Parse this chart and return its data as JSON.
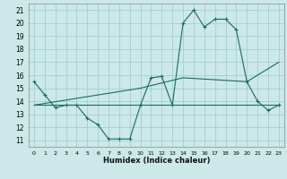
{
  "xlabel": "Humidex (Indice chaleur)",
  "bg_color": "#cce8e8",
  "grid_color": "#99cccc",
  "line_color": "#1a6b5a",
  "xlim": [
    -0.5,
    23.5
  ],
  "ylim": [
    10.5,
    21.5
  ],
  "yticks": [
    11,
    12,
    13,
    14,
    15,
    16,
    17,
    18,
    19,
    20,
    21
  ],
  "xticks": [
    0,
    1,
    2,
    3,
    4,
    5,
    6,
    7,
    8,
    9,
    10,
    11,
    12,
    13,
    14,
    15,
    16,
    17,
    18,
    19,
    20,
    21,
    22,
    23
  ],
  "line1_x": [
    0,
    1,
    2,
    3,
    4,
    5,
    6,
    7,
    8,
    9,
    10,
    11,
    12,
    13,
    14,
    15,
    16,
    17,
    18,
    19,
    20,
    21,
    22,
    23
  ],
  "line1_y": [
    15.5,
    14.5,
    13.5,
    13.7,
    13.7,
    12.7,
    12.2,
    11.1,
    11.1,
    11.1,
    13.7,
    15.8,
    15.9,
    13.7,
    20.0,
    21.0,
    19.7,
    20.3,
    20.3,
    19.5,
    15.5,
    14.0,
    13.3,
    13.7
  ],
  "line2_x": [
    0,
    23
  ],
  "line2_y": [
    13.7,
    13.7
  ],
  "line3_x": [
    0,
    10,
    14,
    20,
    23
  ],
  "line3_y": [
    13.7,
    15.0,
    15.8,
    15.5,
    17.0
  ]
}
